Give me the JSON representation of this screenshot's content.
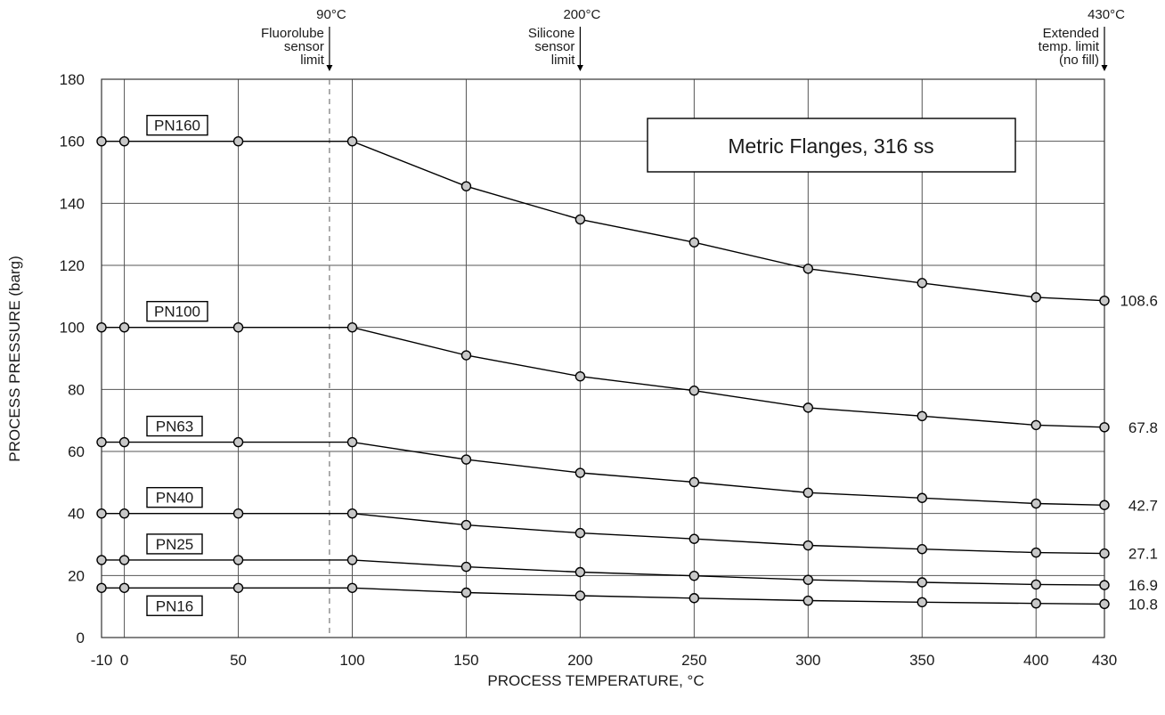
{
  "chart_data": {
    "type": "line",
    "title": "Metric Flanges, 316 ss",
    "xlabel": "PROCESS TEMPERATURE, °C",
    "ylabel": "PROCESS PRESSURE (barg)",
    "xlim": [
      -10,
      430
    ],
    "ylim": [
      0,
      180
    ],
    "x_ticks": [
      -10,
      0,
      50,
      100,
      150,
      200,
      250,
      300,
      350,
      400,
      430
    ],
    "x_tick_labels": [
      "-10",
      "0",
      "50",
      "100",
      "150",
      "200",
      "250",
      "300",
      "350",
      "400",
      "430"
    ],
    "y_ticks": [
      0,
      20,
      40,
      60,
      80,
      100,
      120,
      140,
      160,
      180
    ],
    "y_tick_labels": [
      "0",
      "20",
      "40",
      "60",
      "80",
      "100",
      "120",
      "140",
      "160",
      "180"
    ],
    "grid": true,
    "x": [
      -10,
      0,
      50,
      100,
      150,
      200,
      250,
      300,
      350,
      400,
      430
    ],
    "series": [
      {
        "name": "PN160",
        "values": [
          160,
          160,
          160,
          160,
          145.5,
          134.8,
          127.4,
          118.9,
          114.3,
          109.7,
          108.6
        ],
        "end_label": "108.6"
      },
      {
        "name": "PN100",
        "values": [
          100,
          100,
          100,
          100,
          91,
          84.2,
          79.6,
          74.1,
          71.4,
          68.5,
          67.8
        ],
        "end_label": "67.8"
      },
      {
        "name": "PN63",
        "values": [
          63,
          63,
          63,
          63,
          57.4,
          53.1,
          50.1,
          46.7,
          45,
          43.2,
          42.7
        ],
        "end_label": "42.7"
      },
      {
        "name": "PN40",
        "values": [
          40,
          40,
          40,
          40,
          36.3,
          33.7,
          31.8,
          29.7,
          28.5,
          27.4,
          27.1
        ],
        "end_label": "27.1"
      },
      {
        "name": "PN25",
        "values": [
          25,
          25,
          25,
          25,
          22.8,
          21.1,
          19.9,
          18.6,
          17.8,
          17.1,
          16.9
        ],
        "end_label": "16.9"
      },
      {
        "name": "PN16",
        "values": [
          16,
          16,
          16,
          16,
          14.5,
          13.5,
          12.7,
          11.9,
          11.4,
          11,
          10.8
        ],
        "end_label": "10.8"
      }
    ],
    "annotations": [
      {
        "x": 90,
        "temp": "90°C",
        "lines": [
          "Fluorolube",
          "sensor",
          "limit"
        ],
        "dashed": true
      },
      {
        "x": 200,
        "temp": "200°C",
        "lines": [
          "Silicone",
          "sensor",
          "limit"
        ],
        "dashed": false
      },
      {
        "x": 430,
        "temp": "430°C",
        "lines": [
          "Extended",
          "temp. limit",
          "(no fill)"
        ],
        "dashed": false
      }
    ],
    "colors": {
      "line": "#000000",
      "marker_fill": "#c8c8c8",
      "grid": "#555555"
    }
  }
}
